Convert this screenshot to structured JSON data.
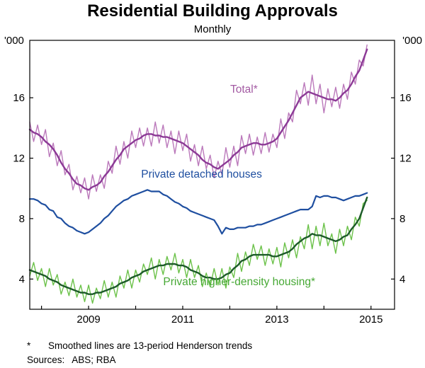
{
  "title": "Residential Building Approvals",
  "subtitle": "Monthly",
  "unit_left": "'000",
  "unit_right": "'000",
  "footnote_marker": "*",
  "footnote_text": "Smoothed lines are 13-period Henderson trends",
  "sources_label": "Sources:",
  "sources_value": "ABS; RBA",
  "chart_data": {
    "type": "line",
    "title": "Residential Building Approvals",
    "subtitle": "Monthly",
    "ylabel_left": "'000",
    "ylabel_right": "'000",
    "xlim": [
      2007.75,
      2015.5
    ],
    "ylim": [
      2,
      19.8
    ],
    "yticks": [
      4,
      8,
      12,
      16
    ],
    "xticks": [
      2009,
      2011,
      2013,
      2015
    ],
    "xticks_minor": [
      2008,
      2009,
      2010,
      2011,
      2012,
      2013,
      2014,
      2015
    ],
    "x_start": 2007.75,
    "x_step": 0.0833333,
    "grid": false,
    "legend": "in-plot labels",
    "series": [
      {
        "id": "total-monthly",
        "label": "Total (monthly)",
        "color": "#bb79bb",
        "width": 1.4,
        "values": [
          14.4,
          13.1,
          14.2,
          12.9,
          13.9,
          12.1,
          13.0,
          11.5,
          12.5,
          10.9,
          11.6,
          9.9,
          10.8,
          9.7,
          10.7,
          9.3,
          10.9,
          9.8,
          10.9,
          10.0,
          11.8,
          11.0,
          12.8,
          11.6,
          13.1,
          12.0,
          13.8,
          12.7,
          14.0,
          12.8,
          14.0,
          12.8,
          14.4,
          13.0,
          14.2,
          12.7,
          13.8,
          12.3,
          13.8,
          12.5,
          13.6,
          11.8,
          12.9,
          11.5,
          12.8,
          11.3,
          12.2,
          10.7,
          11.8,
          10.9,
          12.7,
          11.4,
          12.8,
          11.5,
          13.5,
          12.3,
          13.6,
          12.2,
          13.4,
          12.3,
          13.7,
          12.4,
          13.6,
          12.7,
          14.6,
          13.3,
          15.0,
          14.4,
          16.5,
          15.6,
          17.0,
          15.5,
          17.5,
          15.6,
          16.9,
          15.0,
          16.6,
          15.4,
          16.7,
          15.3,
          16.9,
          15.9,
          17.7,
          16.9,
          18.5,
          18.1,
          19.5
        ]
      },
      {
        "id": "total-trend",
        "label": "Total (13-period Henderson trend)",
        "color": "#8c3a96",
        "width": 2.4,
        "values": [
          13.9,
          13.7,
          13.6,
          13.4,
          13.1,
          12.9,
          12.6,
          12.2,
          11.7,
          11.3,
          11.0,
          10.6,
          10.3,
          10.2,
          10.0,
          9.9,
          10.1,
          10.2,
          10.4,
          10.8,
          11.1,
          11.5,
          11.9,
          12.2,
          12.6,
          12.8,
          13.0,
          13.2,
          13.3,
          13.5,
          13.6,
          13.6,
          13.5,
          13.5,
          13.4,
          13.4,
          13.3,
          13.2,
          13.1,
          13.0,
          12.8,
          12.6,
          12.4,
          12.2,
          11.9,
          11.7,
          11.6,
          11.4,
          11.3,
          11.5,
          11.7,
          11.9,
          12.2,
          12.4,
          12.7,
          12.8,
          12.9,
          13.0,
          13.0,
          12.9,
          12.9,
          13.0,
          13.1,
          13.3,
          13.7,
          14.1,
          14.5,
          15.0,
          15.5,
          16.0,
          16.2,
          16.4,
          16.3,
          16.2,
          16.1,
          16.0,
          15.9,
          15.9,
          15.8,
          16.0,
          16.3,
          16.5,
          16.9,
          17.4,
          17.8,
          18.5,
          19.2
        ]
      },
      {
        "id": "detached-houses",
        "label": "Private detached houses",
        "color": "#1f4fa0",
        "width": 2.2,
        "values": [
          9.3,
          9.3,
          9.2,
          9.0,
          8.9,
          8.6,
          8.5,
          8.1,
          8.0,
          7.7,
          7.5,
          7.4,
          7.2,
          7.1,
          7.0,
          7.1,
          7.3,
          7.5,
          7.7,
          8.0,
          8.2,
          8.5,
          8.8,
          9.0,
          9.2,
          9.3,
          9.5,
          9.6,
          9.7,
          9.8,
          9.9,
          9.8,
          9.8,
          9.8,
          9.6,
          9.5,
          9.3,
          9.1,
          9.0,
          8.8,
          8.7,
          8.5,
          8.4,
          8.3,
          8.2,
          8.1,
          8.0,
          7.9,
          7.5,
          7.0,
          7.4,
          7.3,
          7.3,
          7.4,
          7.4,
          7.4,
          7.5,
          7.5,
          7.6,
          7.6,
          7.7,
          7.8,
          7.9,
          8.0,
          8.1,
          8.2,
          8.3,
          8.4,
          8.5,
          8.6,
          8.6,
          8.6,
          8.8,
          9.5,
          9.4,
          9.5,
          9.5,
          9.4,
          9.4,
          9.3,
          9.2,
          9.3,
          9.4,
          9.5,
          9.5,
          9.6,
          9.7
        ]
      },
      {
        "id": "higher-density-monthly",
        "label": "Private higher-density housing (monthly)",
        "color": "#6cc24a",
        "width": 1.4,
        "values": [
          4.2,
          5.1,
          3.9,
          4.7,
          3.5,
          4.7,
          3.6,
          4.3,
          3.0,
          3.8,
          2.9,
          4.0,
          2.8,
          3.6,
          2.5,
          3.6,
          2.4,
          3.4,
          2.7,
          3.9,
          2.8,
          3.8,
          2.8,
          4.2,
          3.4,
          4.6,
          3.4,
          4.6,
          3.8,
          5.0,
          4.3,
          5.4,
          4.0,
          5.3,
          4.3,
          5.5,
          4.6,
          5.7,
          4.4,
          5.3,
          4.1,
          5.3,
          4.1,
          4.9,
          3.5,
          4.4,
          3.5,
          4.7,
          3.6,
          4.7,
          3.4,
          4.8,
          4.1,
          5.7,
          4.5,
          5.8,
          4.9,
          6.3,
          5.3,
          6.2,
          4.9,
          6.0,
          5.0,
          6.1,
          4.8,
          6.4,
          5.4,
          6.6,
          5.4,
          6.8,
          6.0,
          7.6,
          6.0,
          7.5,
          6.2,
          7.7,
          6.2,
          7.0,
          5.7,
          7.3,
          6.2,
          7.5,
          6.6,
          8.1,
          7.5,
          9.0,
          9.2
        ]
      },
      {
        "id": "higher-density-trend",
        "label": "Private higher-density housing (13-period Henderson trend)",
        "color": "#1d5b29",
        "width": 2.4,
        "values": [
          4.6,
          4.5,
          4.4,
          4.3,
          4.2,
          4.0,
          3.9,
          3.8,
          3.6,
          3.5,
          3.4,
          3.3,
          3.2,
          3.1,
          3.1,
          3.0,
          3.0,
          3.1,
          3.1,
          3.2,
          3.3,
          3.4,
          3.5,
          3.7,
          3.8,
          3.9,
          4.1,
          4.2,
          4.3,
          4.5,
          4.6,
          4.7,
          4.8,
          4.9,
          4.9,
          5.0,
          5.0,
          5.0,
          4.9,
          4.9,
          4.8,
          4.6,
          4.5,
          4.4,
          4.2,
          4.1,
          4.1,
          4.0,
          4.0,
          4.1,
          4.3,
          4.4,
          4.7,
          4.9,
          5.2,
          5.3,
          5.5,
          5.6,
          5.6,
          5.6,
          5.6,
          5.6,
          5.5,
          5.5,
          5.6,
          5.7,
          5.8,
          6.0,
          6.3,
          6.5,
          6.7,
          6.8,
          7.0,
          6.9,
          6.9,
          6.8,
          6.7,
          6.6,
          6.5,
          6.6,
          6.8,
          6.9,
          7.3,
          7.6,
          8.0,
          8.7,
          9.4
        ]
      }
    ],
    "annotations": [
      {
        "text": "Total*",
        "x": 2012.3,
        "y": 16.5,
        "color": "#a35ba3"
      },
      {
        "text": "Private detached houses",
        "x": 2011.4,
        "y": 10.9,
        "color": "#1f4fa0"
      },
      {
        "text": "Private higher-density housing*",
        "x": 2012.2,
        "y": 3.8,
        "color": "#46a834"
      }
    ]
  }
}
